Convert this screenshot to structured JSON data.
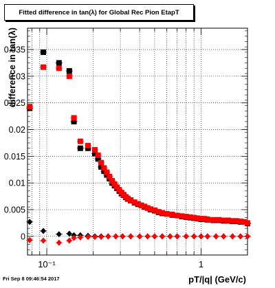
{
  "chart_data": {
    "type": "scatter",
    "title": "Fitted difference in tan(λ) for Global Rec Pion EtapT",
    "xlabel": "pT/|q| (GeV/c)",
    "ylabel": "difference in tan(λ)",
    "x_scale": "log",
    "xlim": [
      0.075,
      2.0
    ],
    "ylim": [
      -0.0035,
      0.039
    ],
    "grid": true,
    "x_tick_labels": [
      "10⁻¹",
      "1"
    ],
    "y_tick_labels": [
      "0",
      "0.005",
      "0.01",
      "0.015",
      "0.02",
      "0.025",
      "0.03",
      "0.035"
    ],
    "y_ticks": [
      0,
      0.005,
      0.01,
      0.015,
      0.02,
      0.025,
      0.03,
      0.035
    ],
    "series": [
      {
        "marker": "square",
        "color": "#000000",
        "x": [
          0.0775,
          0.095,
          0.12,
          0.14,
          0.15,
          0.165,
          0.185,
          0.205,
          0.215,
          0.225,
          0.235,
          0.245,
          0.255,
          0.265,
          0.275,
          0.285,
          0.295,
          0.305,
          0.315,
          0.325,
          0.335,
          0.35,
          0.37,
          0.39,
          0.41,
          0.43,
          0.45,
          0.47,
          0.5,
          0.53,
          0.56,
          0.6,
          0.65,
          0.7,
          0.75,
          0.8,
          0.85,
          0.9,
          0.95,
          1.0,
          1.05,
          1.1,
          1.2,
          1.3,
          1.4,
          1.5,
          1.6,
          1.7,
          1.8,
          1.9,
          2.0
        ],
        "y": [
          0.024,
          0.0345,
          0.0325,
          0.031,
          0.0215,
          0.0165,
          0.0165,
          0.0155,
          0.0145,
          0.013,
          0.0122,
          0.0115,
          0.0108,
          0.01,
          0.0095,
          0.009,
          0.0085,
          0.008,
          0.0077,
          0.0073,
          0.007,
          0.0067,
          0.0063,
          0.006,
          0.0058,
          0.0055,
          0.0053,
          0.005,
          0.0048,
          0.0045,
          0.0043,
          0.0042,
          0.004,
          0.0039,
          0.0037,
          0.0036,
          0.0035,
          0.0034,
          0.0033,
          0.0032,
          0.0032,
          0.0031,
          0.003,
          0.003,
          0.0029,
          0.0029,
          0.0028,
          0.0028,
          0.0027,
          0.0027,
          0.0024
        ]
      },
      {
        "marker": "square",
        "color": "#ff0000",
        "x": [
          0.0775,
          0.095,
          0.12,
          0.14,
          0.15,
          0.165,
          0.185,
          0.205,
          0.215,
          0.225,
          0.235,
          0.245,
          0.255,
          0.265,
          0.275,
          0.285,
          0.295,
          0.305,
          0.315,
          0.325,
          0.335,
          0.35,
          0.37,
          0.39,
          0.41,
          0.43,
          0.45,
          0.47,
          0.5,
          0.53,
          0.56,
          0.6,
          0.65,
          0.7,
          0.75,
          0.8,
          0.85,
          0.9,
          0.95,
          1.0,
          1.05,
          1.1,
          1.2,
          1.3,
          1.4,
          1.5,
          1.6,
          1.7,
          1.8,
          1.9,
          2.0
        ],
        "y": [
          0.0243,
          0.0317,
          0.0315,
          0.03,
          0.0222,
          0.0178,
          0.017,
          0.0162,
          0.0152,
          0.0138,
          0.0128,
          0.012,
          0.0112,
          0.0104,
          0.0098,
          0.0092,
          0.0087,
          0.0082,
          0.0078,
          0.0074,
          0.0071,
          0.0068,
          0.0064,
          0.0061,
          0.0058,
          0.0056,
          0.0053,
          0.0051,
          0.0049,
          0.0046,
          0.0044,
          0.0042,
          0.0041,
          0.0039,
          0.0038,
          0.0037,
          0.0036,
          0.0035,
          0.0034,
          0.0033,
          0.0033,
          0.0032,
          0.0031,
          0.0031,
          0.003,
          0.003,
          0.0029,
          0.0029,
          0.0028,
          0.0027,
          0.0025
        ]
      },
      {
        "marker": "diamond",
        "color": "#000000",
        "x": [
          0.0775,
          0.095,
          0.12,
          0.14,
          0.15,
          0.165,
          0.185,
          0.205,
          0.225,
          0.25,
          0.28,
          0.31,
          0.35,
          0.4,
          0.45,
          0.5,
          0.56,
          0.63,
          0.7,
          0.8,
          0.9,
          1.0,
          1.1,
          1.25,
          1.4,
          1.6,
          1.8,
          2.0
        ],
        "y": [
          0.0027,
          0.001,
          0.0004,
          0.0005,
          0.0002,
          0.0002,
          0.0001,
          0.0,
          0.0,
          0.0,
          0.0,
          0.0,
          0.0,
          0.0,
          0.0,
          0.0,
          0.0,
          0.0,
          0.0,
          0.0,
          0.0,
          0.0,
          0.0,
          0.0,
          0.0,
          0.0,
          0.0,
          0.0
        ]
      },
      {
        "marker": "diamond",
        "color": "#ff0000",
        "x": [
          0.0775,
          0.095,
          0.12,
          0.14,
          0.15,
          0.165,
          0.185,
          0.205,
          0.225,
          0.25,
          0.28,
          0.31,
          0.35,
          0.4,
          0.45,
          0.5,
          0.56,
          0.63,
          0.7,
          0.8,
          0.9,
          1.0,
          1.1,
          1.25,
          1.4,
          1.6,
          1.8,
          2.0
        ],
        "y": [
          -0.0007,
          -0.0008,
          -0.0012,
          -0.0008,
          -0.0003,
          -0.0002,
          -0.0001,
          -0.0001,
          -0.0001,
          0.0,
          0.0,
          0.0,
          0.0,
          0.0,
          0.0,
          0.0,
          0.0,
          0.0,
          0.0,
          0.0,
          0.0,
          0.0,
          0.0,
          0.0,
          0.0,
          0.0,
          0.0,
          0.0
        ]
      }
    ]
  },
  "stamp": "Fri Sep  8 09:46:54 2017"
}
